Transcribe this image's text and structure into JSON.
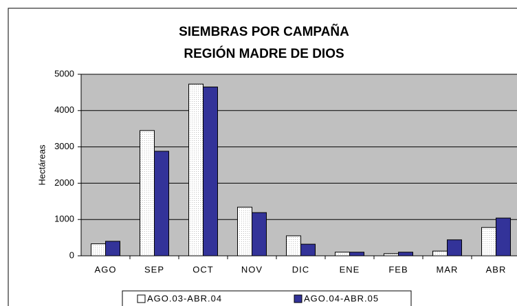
{
  "chart_data": {
    "type": "bar",
    "title": "SIEMBRAS POR CAMPAÑA",
    "subtitle": "REGIÓN MADRE DE DIOS",
    "y_label": "Hectáreas",
    "categories": [
      "AGO",
      "SEP",
      "OCT",
      "NOV",
      "DIC",
      "ENE",
      "FEB",
      "MAR",
      "ABR"
    ],
    "series": [
      {
        "name": "AGO.03-ABR.04",
        "color": "#ffffff",
        "values": [
          330,
          3450,
          4730,
          1340,
          550,
          100,
          60,
          130,
          780
        ]
      },
      {
        "name": "AGO.04-ABR.05",
        "color": "#333399",
        "values": [
          400,
          2880,
          4650,
          1190,
          320,
          100,
          100,
          440,
          1040
        ]
      }
    ],
    "ylim": [
      0,
      5000
    ],
    "yticks": [
      0,
      1000,
      2000,
      3000,
      4000,
      5000
    ],
    "grid": true,
    "plot_background": "#c0c0c0",
    "legend": "bottom"
  }
}
